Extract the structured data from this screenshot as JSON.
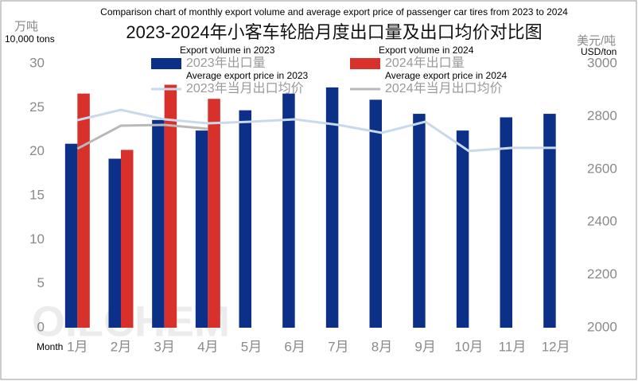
{
  "chart_data": {
    "type": "bar",
    "title_en": "Comparison chart of monthly export volume and average export price of passenger car tires from 2023 to 2024",
    "title": "2023-2024年小客车轮胎月度出口量及出口均价对比图",
    "y_label": "万吨",
    "y_label_en": "10,000 tons",
    "y2_label": "美元/吨",
    "y2_label_en": "USD/ton",
    "x_label_en": "Month",
    "watermark": "OILCHEM",
    "categories": [
      "1月",
      "2月",
      "3月",
      "4月",
      "5月",
      "6月",
      "7月",
      "8月",
      "9月",
      "10月",
      "11月",
      "12月"
    ],
    "ylim": [
      0,
      30
    ],
    "yticks": [
      0,
      5,
      10,
      15,
      20,
      25,
      30
    ],
    "y2lim": [
      2000,
      3000
    ],
    "y2ticks": [
      2000,
      2200,
      2400,
      2600,
      2800,
      3000
    ],
    "series": [
      {
        "name": "2023年出口量",
        "name_en": "Export volume in 2023",
        "type": "bar",
        "color": "#0c2f88",
        "values": [
          20.9,
          19.2,
          23.6,
          22.4,
          24.7,
          26.6,
          27.3,
          25.9,
          24.3,
          22.4,
          23.9,
          24.3
        ]
      },
      {
        "name": "2024年出口量",
        "name_en": "Export volume in 2024",
        "type": "bar",
        "color": "#d8302a",
        "values": [
          26.6,
          20.2,
          27.6,
          26.0,
          null,
          null,
          null,
          null,
          null,
          null,
          null,
          null
        ]
      },
      {
        "name": "2023年当月出口均价",
        "name_en": "Average export price in 2023",
        "type": "line",
        "axis": "y2",
        "color": "#c9d9ec",
        "values": [
          2786,
          2825,
          2789,
          2774,
          2780,
          2789,
          2768,
          2738,
          2780,
          2669,
          2681,
          2681
        ]
      },
      {
        "name": "2024年当月出口均价",
        "name_en": "Average export price in 2024",
        "type": "line",
        "axis": "y2",
        "color": "#b9b9b9",
        "values": [
          2678,
          2765,
          2768,
          2753,
          null,
          null,
          null,
          null,
          null,
          null,
          null,
          null
        ]
      }
    ]
  }
}
